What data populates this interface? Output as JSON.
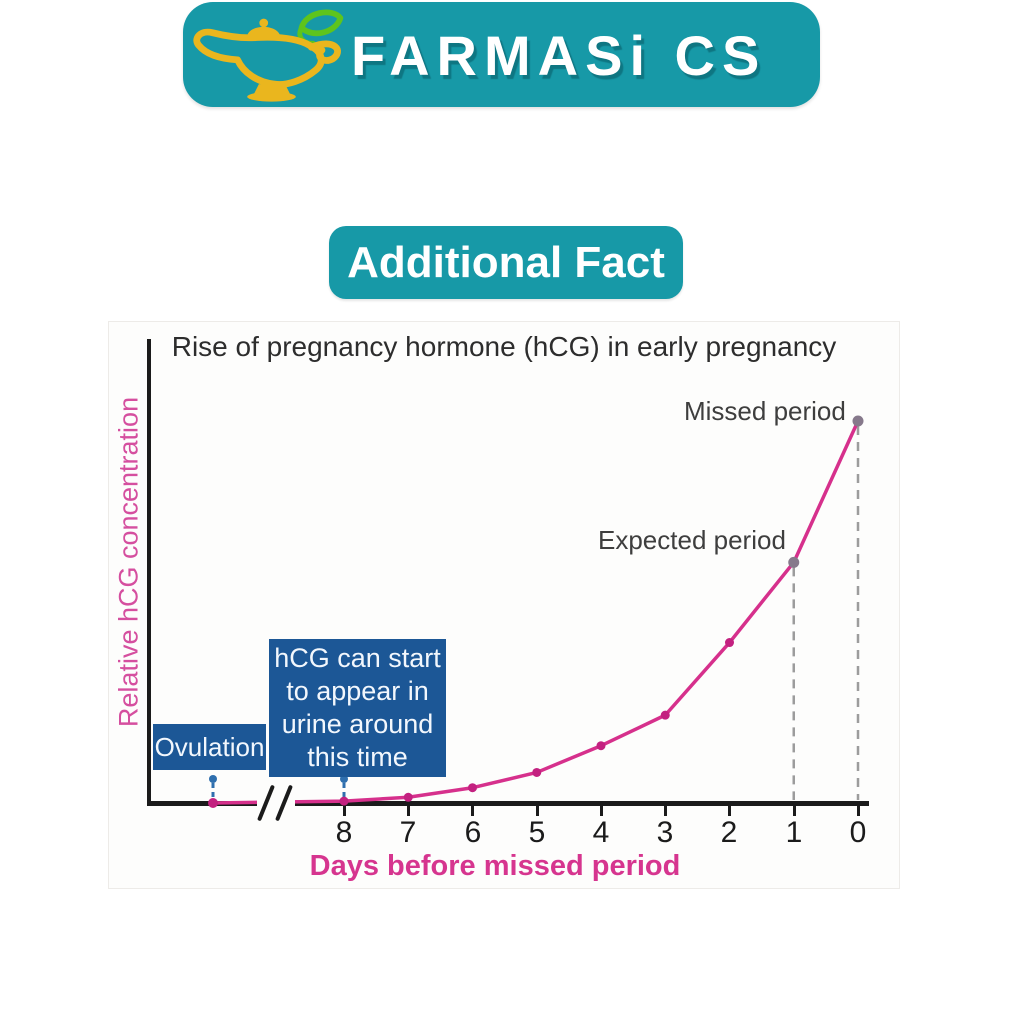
{
  "colors": {
    "teal": "#1799a7",
    "blue_box": "#1c5796",
    "blue_marker": "#2f6fae",
    "pink_line": "#d6308c",
    "pink_dot": "#c32180",
    "gray_dot": "#86798b",
    "dashed_gray": "#9c9c9c",
    "ylabel_pink": "#d54f9f",
    "xlabel_pink": "#d6358f",
    "lamp_gold": "#eab61e",
    "leaf_green": "#5ec41d"
  },
  "header": {
    "brand": "FARMASi CS",
    "logo_icon": "genie-lamp-icon"
  },
  "badge": {
    "label": "Additional Fact"
  },
  "chart": {
    "title": "Rise of pregnancy hormone (hCG) in early pregnancy",
    "ylabel": "Relative hCG concentration",
    "xlabel": "Days before missed period",
    "ticks": [
      "8",
      "7",
      "6",
      "5",
      "4",
      "3",
      "2",
      "1",
      "0"
    ],
    "annotations": {
      "missed_period": "Missed period",
      "expected_period": "Expected period",
      "ovulation": "Ovulation",
      "hcg_note_lines": [
        "hCG can start",
        "to appear in",
        "urine around",
        "this time"
      ]
    }
  },
  "chart_data": {
    "type": "line",
    "title": "Rise of pregnancy hormone (hCG) in early pregnancy",
    "xlabel": "Days before missed period",
    "ylabel": "Relative hCG concentration",
    "x_days_before_missed_period": [
      8,
      7,
      6,
      5,
      4,
      3,
      2,
      1,
      0
    ],
    "relative_hcg_values": [
      0.5,
      1.5,
      4,
      8,
      15,
      23,
      42,
      63,
      100
    ],
    "pre_break_point": {
      "label": "Ovulation",
      "value": 0
    },
    "axis_break_between": [
      "Ovulation",
      8
    ],
    "dashed_guide_days": [
      1,
      0
    ],
    "gray_dot_days": [
      1,
      0
    ],
    "blue_marker_positions": [
      "ovulation",
      8
    ],
    "annotations": [
      {
        "label": "Ovulation",
        "at": "ovulation"
      },
      {
        "label": "hCG can start to appear in urine around this time",
        "at_day": 8
      },
      {
        "label": "Expected period",
        "at_day": 1
      },
      {
        "label": "Missed period",
        "at_day": 0
      }
    ],
    "ylim": [
      0,
      100
    ],
    "x_axis_reversed": true,
    "grid": false,
    "legend": false
  }
}
